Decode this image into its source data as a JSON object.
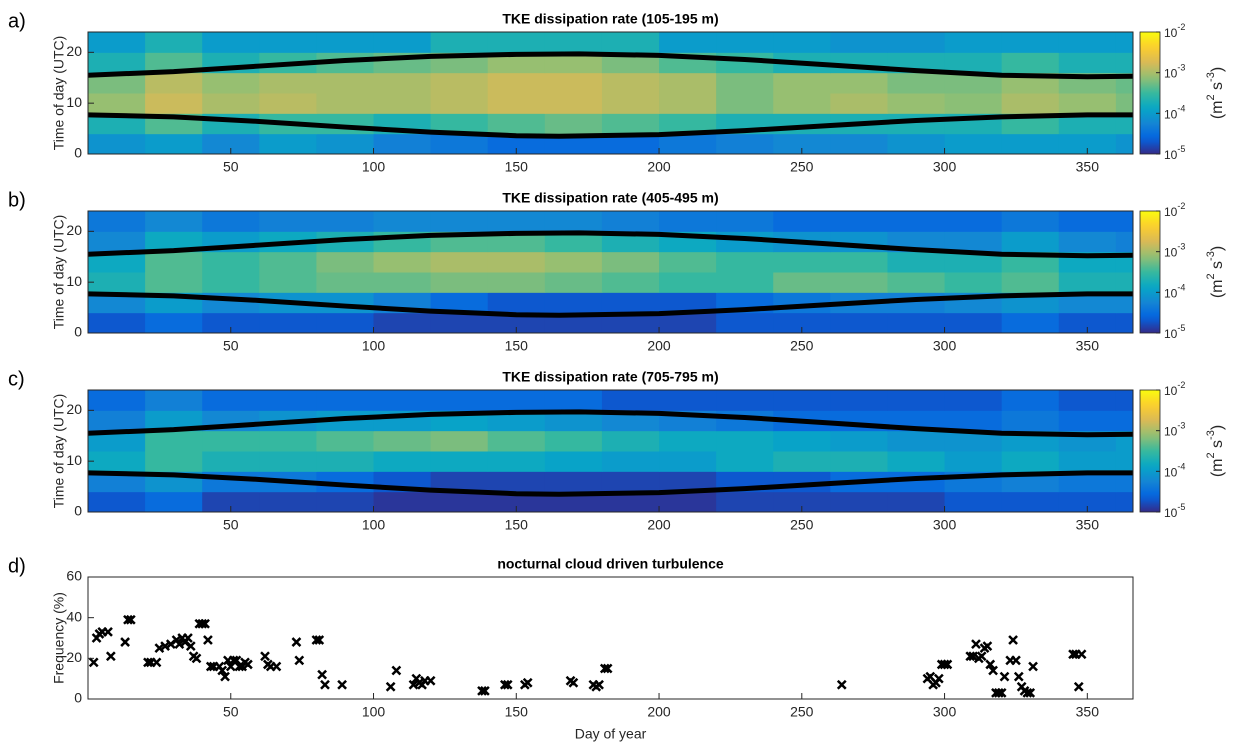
{
  "chart_data": [
    {
      "type": "heatmap",
      "panel_label": "a)",
      "title": "TKE dissipation rate (105-195 m)",
      "ylabel": "Time of day (UTC)",
      "xlim": [
        0,
        366
      ],
      "ylim": [
        0,
        24
      ],
      "xticks": [
        50,
        100,
        150,
        200,
        250,
        300,
        350
      ],
      "yticks": [
        0,
        10,
        20
      ],
      "x_edges": [
        0,
        20,
        40,
        60,
        80,
        100,
        120,
        140,
        160,
        180,
        200,
        220,
        240,
        260,
        280,
        300,
        320,
        340,
        360,
        366
      ],
      "y_edges": [
        0,
        4,
        8,
        12,
        16,
        20,
        24
      ],
      "z": [
        [
          8e-05,
          0.0001,
          6e-05,
          0.0001,
          8e-05,
          5e-05,
          4e-05,
          3e-05,
          3e-05,
          3e-05,
          4e-05,
          5e-05,
          6e-05,
          6e-05,
          8e-05,
          0.0001,
          0.0001,
          0.0001,
          8e-05
        ],
        [
          0.0002,
          0.0004,
          0.0002,
          0.0003,
          0.0003,
          0.0002,
          0.0003,
          0.0004,
          0.0005,
          0.0004,
          0.0003,
          0.0002,
          0.0002,
          0.0002,
          0.0002,
          0.0002,
          0.0003,
          0.0002,
          0.0002
        ],
        [
          0.0008,
          0.0015,
          0.001,
          0.0012,
          0.001,
          0.001,
          0.0012,
          0.0015,
          0.0015,
          0.0012,
          0.001,
          0.0006,
          0.0008,
          0.001,
          0.0008,
          0.0007,
          0.001,
          0.0008,
          0.0006
        ],
        [
          0.0006,
          0.0012,
          0.0008,
          0.001,
          0.001,
          0.001,
          0.0012,
          0.0015,
          0.0015,
          0.0012,
          0.001,
          0.0006,
          0.0008,
          0.0008,
          0.0006,
          0.0006,
          0.0008,
          0.0006,
          0.0005
        ],
        [
          0.0002,
          0.0004,
          0.0002,
          0.0003,
          0.0004,
          0.0005,
          0.0006,
          0.0008,
          0.0008,
          0.0006,
          0.0004,
          0.0003,
          0.0002,
          0.0002,
          0.0002,
          0.0002,
          0.0003,
          0.0002,
          0.0002
        ],
        [
          0.0001,
          0.0002,
          0.0001,
          0.0001,
          0.0001,
          0.0001,
          0.0002,
          0.0002,
          0.0002,
          0.0002,
          0.0001,
          0.0001,
          0.0001,
          8e-05,
          8e-05,
          0.0001,
          0.0001,
          0.0001,
          0.0001
        ]
      ],
      "colormap": "parula",
      "clog": true,
      "clim": [
        1e-05,
        0.01
      ],
      "cticks": [
        {
          "value": 1e-05,
          "label": "10",
          "exponent": "-5"
        },
        {
          "value": 0.0001,
          "label": "10",
          "exponent": "-4"
        },
        {
          "value": 0.001,
          "label": "10",
          "exponent": "-3"
        },
        {
          "value": 0.01,
          "label": "10",
          "exponent": "-2"
        }
      ],
      "colorbar_label": [
        "(m",
        "2",
        " s",
        "-3",
        ")"
      ],
      "lines": [
        {
          "color": "#000000",
          "x": [
            0,
            30,
            60,
            90,
            120,
            150,
            172,
            200,
            230,
            260,
            290,
            320,
            350,
            366
          ],
          "values": [
            15.5,
            16.2,
            17.3,
            18.4,
            19.2,
            19.6,
            19.7,
            19.4,
            18.6,
            17.5,
            16.4,
            15.5,
            15.2,
            15.3
          ]
        },
        {
          "color": "#000000",
          "x": [
            0,
            30,
            60,
            90,
            120,
            150,
            165,
            200,
            230,
            260,
            290,
            320,
            350,
            366
          ],
          "values": [
            7.7,
            7.3,
            6.4,
            5.3,
            4.3,
            3.6,
            3.5,
            3.8,
            4.6,
            5.6,
            6.6,
            7.3,
            7.7,
            7.7
          ]
        }
      ]
    },
    {
      "type": "heatmap",
      "panel_label": "b)",
      "title": "TKE dissipation rate (405-495 m)",
      "ylabel": "Time of day (UTC)",
      "xlim": [
        0,
        366
      ],
      "ylim": [
        0,
        24
      ],
      "xticks": [
        50,
        100,
        150,
        200,
        250,
        300,
        350
      ],
      "yticks": [
        0,
        10,
        20
      ],
      "x_edges": [
        0,
        20,
        40,
        60,
        80,
        100,
        120,
        140,
        160,
        180,
        200,
        220,
        240,
        260,
        280,
        300,
        320,
        340,
        360,
        366
      ],
      "y_edges": [
        0,
        4,
        8,
        12,
        16,
        20,
        24
      ],
      "z": [
        [
          2e-05,
          3e-05,
          2e-05,
          2e-05,
          2e-05,
          1.5e-05,
          1.5e-05,
          1.5e-05,
          1.5e-05,
          1.5e-05,
          1.5e-05,
          2e-05,
          2e-05,
          2e-05,
          2e-05,
          2e-05,
          3e-05,
          2e-05,
          2e-05
        ],
        [
          6e-05,
          0.0001,
          6e-05,
          8e-05,
          8e-05,
          5e-05,
          3e-05,
          2e-05,
          2e-05,
          2e-05,
          2e-05,
          3e-05,
          4e-05,
          5e-05,
          5e-05,
          6e-05,
          8e-05,
          6e-05,
          6e-05
        ],
        [
          0.0002,
          0.0004,
          0.0003,
          0.0004,
          0.0005,
          0.0005,
          0.0006,
          0.0006,
          0.0005,
          0.0004,
          0.0003,
          0.0003,
          0.0005,
          0.0005,
          0.0004,
          0.0003,
          0.0004,
          0.0002,
          0.0002
        ],
        [
          0.00015,
          0.0004,
          0.0003,
          0.0004,
          0.0006,
          0.0008,
          0.001,
          0.001,
          0.0008,
          0.0006,
          0.0004,
          0.0003,
          0.0003,
          0.0003,
          0.0002,
          0.0002,
          0.0003,
          0.00015,
          0.00015
        ],
        [
          6e-05,
          0.00015,
          0.0001,
          0.00015,
          0.0002,
          0.0003,
          0.0004,
          0.0004,
          0.0003,
          0.0002,
          0.00015,
          0.0001,
          8e-05,
          8e-05,
          6e-05,
          6e-05,
          0.0001,
          6e-05,
          5e-05
        ],
        [
          4e-05,
          6e-05,
          4e-05,
          5e-05,
          5e-05,
          6e-05,
          6e-05,
          6e-05,
          6e-05,
          5e-05,
          4e-05,
          4e-05,
          3e-05,
          3e-05,
          3e-05,
          3e-05,
          4e-05,
          3e-05,
          3e-05
        ]
      ],
      "colormap": "parula",
      "clog": true,
      "clim": [
        1e-05,
        0.01
      ],
      "cticks": [
        {
          "value": 1e-05,
          "label": "10",
          "exponent": "-5"
        },
        {
          "value": 0.0001,
          "label": "10",
          "exponent": "-4"
        },
        {
          "value": 0.001,
          "label": "10",
          "exponent": "-3"
        },
        {
          "value": 0.01,
          "label": "10",
          "exponent": "-2"
        }
      ],
      "colorbar_label": [
        "(m",
        "2",
        " s",
        "-3",
        ")"
      ],
      "lines": [
        {
          "color": "#000000",
          "x": [
            0,
            30,
            60,
            90,
            120,
            150,
            172,
            200,
            230,
            260,
            290,
            320,
            350,
            366
          ],
          "values": [
            15.5,
            16.2,
            17.3,
            18.4,
            19.2,
            19.6,
            19.7,
            19.4,
            18.6,
            17.5,
            16.4,
            15.5,
            15.2,
            15.3
          ]
        },
        {
          "color": "#000000",
          "x": [
            0,
            30,
            60,
            90,
            120,
            150,
            165,
            200,
            230,
            260,
            290,
            320,
            350,
            366
          ],
          "values": [
            7.7,
            7.3,
            6.4,
            5.3,
            4.3,
            3.6,
            3.5,
            3.8,
            4.6,
            5.6,
            6.6,
            7.3,
            7.7,
            7.7
          ]
        }
      ]
    },
    {
      "type": "heatmap",
      "panel_label": "c)",
      "title": "TKE dissipation rate (705-795 m)",
      "ylabel": "Time of day (UTC)",
      "xlim": [
        0,
        366
      ],
      "ylim": [
        0,
        24
      ],
      "xticks": [
        50,
        100,
        150,
        200,
        250,
        300,
        350
      ],
      "yticks": [
        0,
        10,
        20
      ],
      "x_edges": [
        0,
        20,
        40,
        60,
        80,
        100,
        120,
        140,
        160,
        180,
        200,
        220,
        240,
        260,
        280,
        300,
        320,
        340,
        360,
        366
      ],
      "y_edges": [
        0,
        4,
        8,
        12,
        16,
        20,
        24
      ],
      "z": [
        [
          2e-05,
          3e-05,
          1.5e-05,
          1.5e-05,
          1.5e-05,
          1.2e-05,
          1.2e-05,
          1.2e-05,
          1.2e-05,
          1.2e-05,
          1.2e-05,
          1.5e-05,
          1.5e-05,
          1.5e-05,
          1.5e-05,
          2e-05,
          2e-05,
          2e-05,
          2e-05
        ],
        [
          5e-05,
          8e-05,
          4e-05,
          4e-05,
          3e-05,
          2e-05,
          1.5e-05,
          1.5e-05,
          1.5e-05,
          1.5e-05,
          1.5e-05,
          2e-05,
          2e-05,
          3e-05,
          3e-05,
          4e-05,
          5e-05,
          4e-05,
          4e-05
        ],
        [
          0.00015,
          0.0003,
          0.0002,
          0.0002,
          0.0002,
          0.00015,
          0.00015,
          0.00015,
          0.00012,
          0.0001,
          0.0001,
          0.00015,
          0.0002,
          0.0002,
          0.00015,
          0.0001,
          0.00015,
          0.0001,
          0.0001
        ],
        [
          0.0001,
          0.0003,
          0.0003,
          0.0003,
          0.0004,
          0.0005,
          0.0006,
          0.0004,
          0.0003,
          0.0002,
          0.00015,
          0.00015,
          0.00012,
          0.0001,
          8e-05,
          8e-05,
          0.0001,
          8e-05,
          0.0001
        ],
        [
          5e-05,
          0.0001,
          6e-05,
          8e-05,
          0.0001,
          0.0001,
          0.00012,
          0.0001,
          8e-05,
          6e-05,
          5e-05,
          4e-05,
          3e-05,
          3e-05,
          3e-05,
          3e-05,
          4e-05,
          3e-05,
          3e-05
        ],
        [
          3e-05,
          5e-05,
          3e-05,
          3e-05,
          3e-05,
          3e-05,
          3e-05,
          3e-05,
          3e-05,
          2e-05,
          2e-05,
          2e-05,
          2e-05,
          2e-05,
          2e-05,
          2e-05,
          3e-05,
          2e-05,
          2e-05
        ]
      ],
      "colormap": "parula",
      "clog": true,
      "clim": [
        1e-05,
        0.01
      ],
      "cticks": [
        {
          "value": 1e-05,
          "label": "10",
          "exponent": "-5"
        },
        {
          "value": 0.0001,
          "label": "10",
          "exponent": "-4"
        },
        {
          "value": 0.001,
          "label": "10",
          "exponent": "-3"
        },
        {
          "value": 0.01,
          "label": "10",
          "exponent": "-2"
        }
      ],
      "colorbar_label": [
        "(m",
        "2",
        " s",
        "-3",
        ")"
      ],
      "lines": [
        {
          "color": "#000000",
          "x": [
            0,
            30,
            60,
            90,
            120,
            150,
            172,
            200,
            230,
            260,
            290,
            320,
            350,
            366
          ],
          "values": [
            15.5,
            16.2,
            17.3,
            18.4,
            19.2,
            19.6,
            19.7,
            19.4,
            18.6,
            17.5,
            16.4,
            15.5,
            15.2,
            15.3
          ]
        },
        {
          "color": "#000000",
          "x": [
            0,
            30,
            60,
            90,
            120,
            150,
            165,
            200,
            230,
            260,
            290,
            320,
            350,
            366
          ],
          "values": [
            7.7,
            7.3,
            6.4,
            5.3,
            4.3,
            3.6,
            3.5,
            3.8,
            4.6,
            5.6,
            6.6,
            7.3,
            7.7,
            7.7
          ]
        }
      ]
    },
    {
      "type": "scatter",
      "panel_label": "d)",
      "title": "nocturnal cloud driven turbulence",
      "xlabel": "Day of year",
      "ylabel": "Frequency (%)",
      "xlim": [
        0,
        366
      ],
      "ylim": [
        0,
        60
      ],
      "xticks": [
        50,
        100,
        150,
        200,
        250,
        300,
        350
      ],
      "yticks": [
        0,
        20,
        40,
        60
      ],
      "color": "#000000",
      "x": [
        2,
        3,
        4,
        5,
        7,
        8,
        13,
        14,
        15,
        21,
        22,
        24,
        25,
        27,
        29,
        31,
        32,
        33,
        34,
        35,
        36,
        37,
        38,
        39,
        40,
        41,
        42,
        43,
        44,
        46,
        47,
        48,
        49,
        50,
        51,
        52,
        53,
        54,
        55,
        56,
        62,
        63,
        64,
        66,
        73,
        74,
        80,
        81,
        82,
        83,
        89,
        106,
        108,
        114,
        115,
        116,
        117,
        118,
        120,
        138,
        139,
        146,
        147,
        153,
        154,
        169,
        170,
        177,
        178,
        179,
        181,
        182,
        264,
        294,
        295,
        296,
        297,
        298,
        299,
        300,
        301,
        309,
        310,
        311,
        312,
        313,
        314,
        315,
        316,
        317,
        318,
        319,
        320,
        321,
        323,
        324,
        325,
        326,
        327,
        328,
        329,
        330,
        331,
        345,
        346,
        347,
        348
      ],
      "values": [
        18,
        30,
        32,
        33,
        33,
        21,
        28,
        39,
        39,
        18,
        18,
        18,
        25,
        26,
        27,
        29,
        27,
        30,
        28,
        30,
        26,
        21,
        20,
        37,
        37,
        37,
        29,
        16,
        16,
        16,
        14,
        11,
        19,
        16,
        19,
        19,
        16,
        16,
        18,
        17,
        21,
        17,
        16,
        16,
        28,
        19,
        29,
        29,
        12,
        7,
        7,
        6,
        14,
        7,
        10,
        8,
        7,
        9,
        9,
        4,
        4,
        7,
        7,
        7,
        8,
        9,
        8,
        7,
        6,
        7,
        15,
        15,
        7,
        10,
        11,
        7,
        8,
        10,
        17,
        17,
        17,
        21,
        21,
        27,
        20,
        21,
        25,
        26,
        17,
        14,
        3,
        3,
        3,
        11,
        19,
        29,
        19,
        11,
        6,
        4,
        3,
        3,
        16,
        22,
        22,
        6,
        22
      ]
    }
  ]
}
